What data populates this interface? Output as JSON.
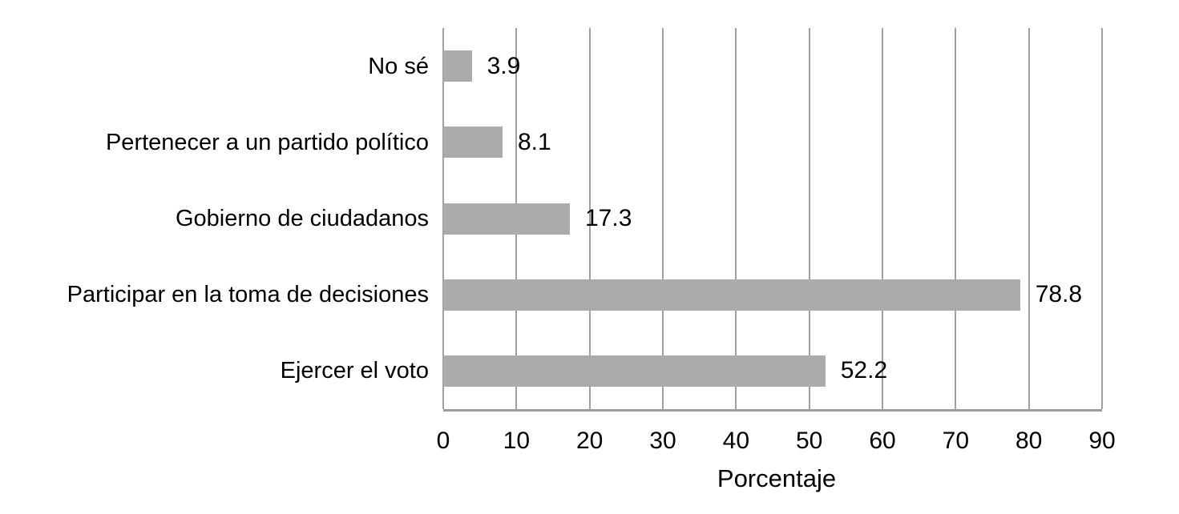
{
  "chart_data": {
    "type": "bar",
    "orientation": "horizontal",
    "title": "",
    "xlabel": "Porcentaje",
    "ylabel": "",
    "categories": [
      "No sé",
      "Pertenecer a un partido político",
      "Gobierno de ciudadanos",
      "Participar en la toma de decisiones",
      "Ejercer el voto"
    ],
    "values": [
      3.9,
      8.1,
      17.3,
      78.8,
      52.2
    ],
    "value_labels": [
      "3.9",
      "8.1",
      "17.3",
      "78.8",
      "52.2"
    ],
    "xlim": [
      0,
      90
    ],
    "xticks": [
      0,
      10,
      20,
      30,
      40,
      50,
      60,
      70,
      80,
      90
    ],
    "grid": "vertical-gridlines",
    "legend": "none"
  },
  "colors": {
    "bar": "#ABABAB",
    "gridline": "#A0A0A0",
    "axis_line": "#9E9E9E",
    "text": "#000000",
    "background": "#FFFFFF"
  }
}
